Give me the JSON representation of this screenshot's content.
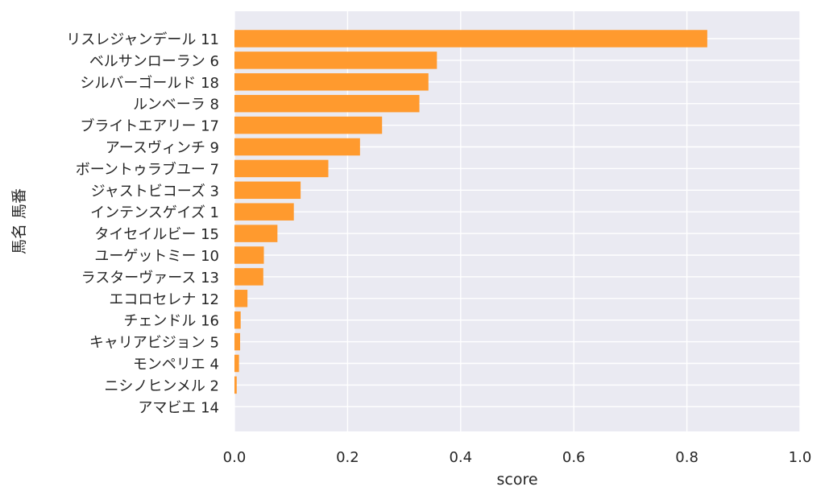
{
  "chart_data": {
    "type": "bar",
    "orientation": "horizontal",
    "categories": [
      "リスレジャンデール 11",
      "ベルサンローラン 6",
      "シルバーゴールド 18",
      "ルンベーラ 8",
      "ブライトエアリー 17",
      "アースヴィンチ 9",
      "ボーントゥラブユー 7",
      "ジャストビコーズ 3",
      "インテンスゲイズ 1",
      "タイセイルビー 15",
      "ユーゲットミー 10",
      "ラスターヴァース 13",
      "エコロセレナ 12",
      "チェンドル 16",
      "キャリアビジョン 5",
      "モンペリエ 4",
      "ニシノヒンメル 2",
      "アマビエ 14"
    ],
    "values": [
      0.836,
      0.358,
      0.343,
      0.327,
      0.261,
      0.222,
      0.166,
      0.117,
      0.105,
      0.076,
      0.052,
      0.051,
      0.023,
      0.011,
      0.01,
      0.008,
      0.004,
      0.0
    ],
    "xlabel": "score",
    "ylabel": "馬名 馬番",
    "xlim": [
      0,
      1.0
    ],
    "xticks": [
      "0.0",
      "0.2",
      "0.4",
      "0.6",
      "0.8",
      "1.0"
    ],
    "grid": true,
    "bar_color": "#ff9a2e",
    "background_color": "#eaeaf2"
  }
}
